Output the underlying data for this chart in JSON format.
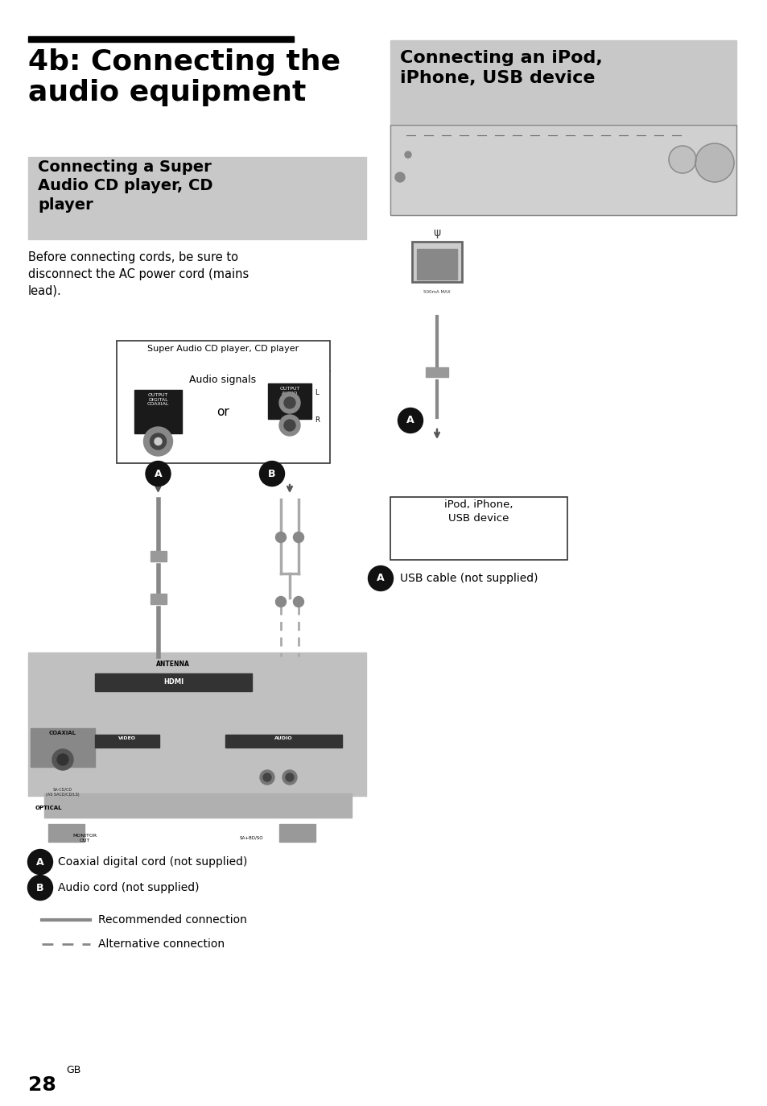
{
  "bg_color": "#ffffff",
  "page_width": 9.54,
  "page_height": 13.73,
  "title_main": "4b: Connecting the\naudio equipment",
  "title_right": "Connecting an iPod,\niPhone, USB device",
  "section_left_title": "Connecting a Super\nAudio CD player, CD\nplayer",
  "body_text": "Before connecting cords, be sure to\ndisconnect the AC power cord (mains\nlead).",
  "cd_box_title": "Super Audio CD player, CD player",
  "cd_box_sub": "Audio signals",
  "or_text": "or",
  "usb_label": "iPod, iPhone,\nUSB device",
  "usb_cable_note": "USB cable (not supplied)",
  "coaxial_note": "Coaxial digital cord (not supplied)",
  "audio_note": "Audio cord (not supplied)",
  "legend_solid": "Recommended connection",
  "legend_dashed": "Alternative connection",
  "page_num": "28",
  "page_suffix": "GB"
}
